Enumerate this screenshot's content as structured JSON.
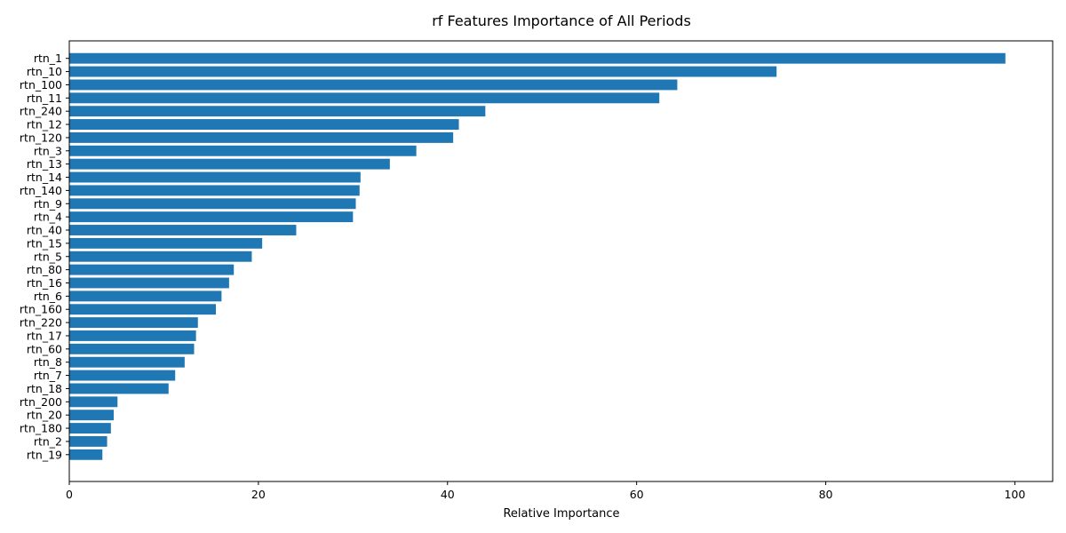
{
  "chart_data": {
    "type": "bar",
    "orientation": "horizontal",
    "title": "rf Features Importance of All Periods",
    "xlabel": "Relative Importance",
    "ylabel": "",
    "xlim": [
      0,
      104
    ],
    "xticks": [
      0,
      20,
      40,
      60,
      80,
      100
    ],
    "grid": false,
    "legend": "none",
    "bar_color": "#1f77b4",
    "categories": [
      "rtn_1",
      "rtn_10",
      "rtn_100",
      "rtn_11",
      "rtn_240",
      "rtn_12",
      "rtn_120",
      "rtn_3",
      "rtn_13",
      "rtn_14",
      "rtn_140",
      "rtn_9",
      "rtn_4",
      "rtn_40",
      "rtn_15",
      "rtn_5",
      "rtn_80",
      "rtn_16",
      "rtn_6",
      "rtn_160",
      "rtn_220",
      "rtn_17",
      "rtn_60",
      "rtn_8",
      "rtn_7",
      "rtn_18",
      "rtn_200",
      "rtn_20",
      "rtn_180",
      "rtn_2",
      "rtn_19"
    ],
    "values": [
      99.0,
      74.8,
      64.3,
      62.4,
      44.0,
      41.2,
      40.6,
      36.7,
      33.9,
      30.8,
      30.7,
      30.3,
      30.0,
      24.0,
      20.4,
      19.3,
      17.4,
      16.9,
      16.1,
      15.5,
      13.6,
      13.4,
      13.2,
      12.2,
      11.2,
      10.5,
      5.1,
      4.7,
      4.4,
      4.0,
      3.5
    ]
  }
}
